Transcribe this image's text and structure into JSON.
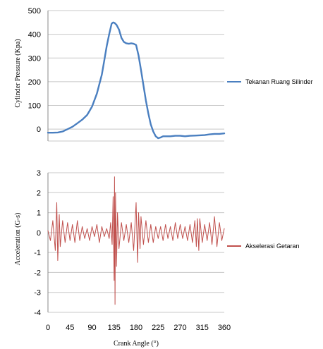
{
  "chart_data": [
    {
      "type": "line",
      "xlim": [
        0,
        360
      ],
      "ylim": [
        -50,
        500
      ],
      "yticks": [
        0,
        100,
        200,
        300,
        400,
        500
      ],
      "ylabel": "Cylinder Pressure (Kpa)",
      "grid": "horizontal",
      "legend": "right",
      "series": [
        {
          "name": "Tekanan Ruang Silinder",
          "color": "#4a7fc0",
          "x": [
            0,
            10,
            20,
            30,
            40,
            50,
            60,
            70,
            80,
            90,
            100,
            110,
            115,
            120,
            125,
            130,
            133,
            136,
            140,
            145,
            150,
            155,
            160,
            165,
            170,
            175,
            180,
            185,
            190,
            195,
            200,
            205,
            210,
            215,
            220,
            225,
            230,
            235,
            240,
            250,
            260,
            270,
            280,
            290,
            300,
            310,
            320,
            330,
            340,
            350,
            360
          ],
          "y": [
            -15,
            -15,
            -14,
            -10,
            0,
            10,
            25,
            40,
            60,
            95,
            150,
            230,
            290,
            350,
            400,
            445,
            450,
            448,
            440,
            420,
            385,
            368,
            362,
            360,
            362,
            360,
            355,
            310,
            250,
            185,
            120,
            65,
            20,
            -10,
            -30,
            -38,
            -35,
            -30,
            -30,
            -30,
            -28,
            -28,
            -30,
            -28,
            -27,
            -26,
            -25,
            -22,
            -20,
            -20,
            -18
          ]
        }
      ]
    },
    {
      "type": "line",
      "xlim": [
        0,
        360
      ],
      "ylim": [
        -4,
        3
      ],
      "yticks": [
        -4,
        -3,
        -2,
        -1,
        0,
        1,
        2,
        3
      ],
      "xticks": [
        0,
        45,
        90,
        135,
        180,
        225,
        270,
        315,
        360
      ],
      "xlabel": "Crank Angle (°)",
      "ylabel": "Acceleration (G-s)",
      "grid": "horizontal",
      "legend": "right",
      "series": [
        {
          "name": "Akselerasi Getaran",
          "color": "#c0504d",
          "x": [
            0,
            5,
            10,
            15,
            18,
            20,
            23,
            25,
            30,
            35,
            40,
            45,
            50,
            55,
            60,
            65,
            70,
            75,
            80,
            85,
            90,
            95,
            100,
            105,
            110,
            115,
            120,
            125,
            128,
            131,
            133,
            135,
            136,
            137,
            138,
            140,
            142,
            145,
            150,
            155,
            160,
            165,
            170,
            175,
            180,
            183,
            185,
            188,
            190,
            195,
            200,
            205,
            210,
            215,
            220,
            225,
            230,
            235,
            240,
            245,
            250,
            255,
            260,
            265,
            270,
            275,
            280,
            285,
            290,
            295,
            300,
            303,
            305,
            308,
            310,
            315,
            320,
            325,
            330,
            335,
            340,
            345,
            350,
            355,
            360
          ],
          "y": [
            0.1,
            -0.4,
            0.6,
            -0.9,
            1.5,
            -1.4,
            0.9,
            -0.7,
            0.6,
            -0.5,
            0.5,
            -0.4,
            0.4,
            -0.5,
            0.6,
            -0.4,
            0.3,
            -0.3,
            0.2,
            -0.4,
            0.3,
            -0.2,
            0.4,
            -0.5,
            0.3,
            -0.2,
            0.2,
            -0.3,
            0.5,
            -0.6,
            1.8,
            -2.4,
            2.8,
            -3.6,
            2.0,
            -1.7,
            1.0,
            -0.8,
            0.5,
            -0.4,
            0.4,
            -0.5,
            0.5,
            -0.9,
            1.5,
            -1.5,
            1.0,
            -0.8,
            0.8,
            -0.6,
            0.6,
            -0.5,
            0.4,
            -0.5,
            0.3,
            -0.3,
            0.3,
            -0.4,
            0.4,
            -0.3,
            0.3,
            -0.4,
            0.5,
            -0.3,
            0.4,
            -0.3,
            0.3,
            -0.4,
            0.4,
            -0.5,
            0.6,
            -0.7,
            0.7,
            -0.9,
            0.7,
            -0.5,
            0.4,
            -0.4,
            0.5,
            -0.6,
            0.8,
            -0.7,
            0.5,
            -0.4,
            0.2
          ]
        }
      ]
    }
  ]
}
